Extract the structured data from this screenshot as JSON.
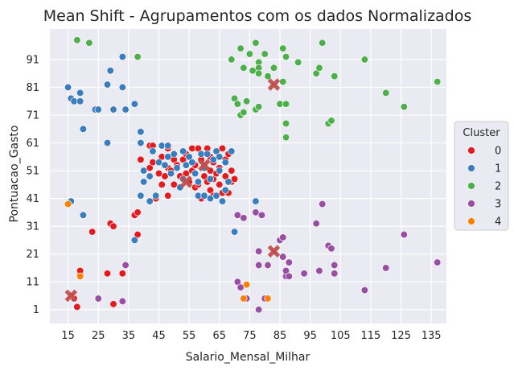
{
  "chart_data": {
    "type": "scatter",
    "title": "Mean Shift - Agrupamentos com os dados Normalizados",
    "xlabel": "Salario_Mensal_Milhar",
    "ylabel": "Pontuacao_Gasto",
    "xlim": [
      9,
      140
    ],
    "ylim": [
      -4,
      102
    ],
    "xticks": [
      15,
      25,
      35,
      45,
      55,
      65,
      75,
      85,
      95,
      105,
      115,
      125,
      135
    ],
    "yticks": [
      1,
      11,
      21,
      31,
      41,
      51,
      61,
      71,
      81,
      91
    ],
    "grid": true,
    "background": "#eaeaf2",
    "legend": {
      "title": "Cluster",
      "placement": "center-right"
    },
    "series": [
      {
        "name": "0",
        "color": "#e41a1c",
        "points": [
          [
            16,
            6
          ],
          [
            17,
            5
          ],
          [
            18,
            2
          ],
          [
            19,
            14
          ],
          [
            19,
            15
          ],
          [
            23,
            29
          ],
          [
            28,
            14
          ],
          [
            29,
            32
          ],
          [
            30,
            31
          ],
          [
            30,
            3
          ],
          [
            33,
            14
          ],
          [
            33,
            4
          ],
          [
            37,
            35
          ],
          [
            38,
            36
          ],
          [
            38,
            28
          ],
          [
            39,
            55
          ],
          [
            40,
            47
          ],
          [
            42,
            52
          ],
          [
            42,
            60
          ],
          [
            43,
            60
          ],
          [
            43,
            54
          ],
          [
            44,
            41
          ],
          [
            45,
            50
          ],
          [
            46,
            46
          ],
          [
            46,
            56
          ],
          [
            47,
            49
          ],
          [
            48,
            52
          ],
          [
            48,
            59
          ],
          [
            48,
            42
          ],
          [
            49,
            51
          ],
          [
            50,
            55
          ],
          [
            50,
            46
          ],
          [
            51,
            53
          ],
          [
            52,
            49
          ],
          [
            53,
            55
          ],
          [
            54,
            57
          ],
          [
            54,
            50
          ],
          [
            55,
            47
          ],
          [
            56,
            51
          ],
          [
            56,
            59
          ],
          [
            57,
            53
          ],
          [
            57,
            45
          ],
          [
            58,
            46
          ],
          [
            58,
            59
          ],
          [
            59,
            55
          ],
          [
            59,
            41
          ],
          [
            60,
            49
          ],
          [
            60,
            53
          ],
          [
            61,
            47
          ],
          [
            61,
            59
          ],
          [
            62,
            44
          ],
          [
            62,
            51
          ],
          [
            62,
            56
          ],
          [
            63,
            42
          ],
          [
            63,
            54
          ],
          [
            63,
            48
          ],
          [
            64,
            50
          ],
          [
            65,
            52
          ],
          [
            65,
            46
          ],
          [
            66,
            59
          ],
          [
            66,
            43
          ],
          [
            67,
            55
          ],
          [
            67,
            49
          ],
          [
            68,
            43
          ],
          [
            68,
            57
          ],
          [
            69,
            51
          ],
          [
            69,
            47
          ],
          [
            70,
            48
          ]
        ]
      },
      {
        "name": "1",
        "color": "#3a7dbf",
        "points": [
          [
            15,
            81
          ],
          [
            16,
            77
          ],
          [
            16,
            40
          ],
          [
            17,
            76
          ],
          [
            19,
            79
          ],
          [
            19,
            76
          ],
          [
            20,
            66
          ],
          [
            20,
            35
          ],
          [
            24,
            73
          ],
          [
            25,
            73
          ],
          [
            28,
            82
          ],
          [
            28,
            61
          ],
          [
            29,
            87
          ],
          [
            30,
            73
          ],
          [
            33,
            92
          ],
          [
            33,
            81
          ],
          [
            34,
            73
          ],
          [
            37,
            75
          ],
          [
            37,
            26
          ],
          [
            39,
            65
          ],
          [
            39,
            61
          ],
          [
            39,
            42
          ],
          [
            40,
            47
          ],
          [
            40,
            51
          ],
          [
            42,
            49
          ],
          [
            42,
            40
          ],
          [
            43,
            58
          ],
          [
            44,
            42
          ],
          [
            45,
            54
          ],
          [
            46,
            60
          ],
          [
            47,
            53
          ],
          [
            48,
            56
          ],
          [
            48,
            60
          ],
          [
            49,
            50
          ],
          [
            50,
            57
          ],
          [
            51,
            52
          ],
          [
            52,
            45
          ],
          [
            53,
            48
          ],
          [
            53,
            58
          ],
          [
            54,
            53
          ],
          [
            55,
            56
          ],
          [
            56,
            54
          ],
          [
            57,
            50
          ],
          [
            58,
            47
          ],
          [
            58,
            42
          ],
          [
            59,
            57
          ],
          [
            60,
            52
          ],
          [
            60,
            42
          ],
          [
            61,
            57
          ],
          [
            62,
            48
          ],
          [
            62,
            41
          ],
          [
            63,
            55
          ],
          [
            64,
            58
          ],
          [
            64,
            42
          ],
          [
            65,
            56
          ],
          [
            65,
            51
          ],
          [
            66,
            40
          ],
          [
            67,
            44
          ],
          [
            67,
            54
          ],
          [
            68,
            47
          ],
          [
            69,
            58
          ],
          [
            70,
            29
          ],
          [
            77,
            40
          ]
        ]
      },
      {
        "name": "2",
        "color": "#4daf4a",
        "points": [
          [
            18,
            98
          ],
          [
            22,
            97
          ],
          [
            38,
            92
          ],
          [
            69,
            91
          ],
          [
            70,
            77
          ],
          [
            71,
            75
          ],
          [
            72,
            71
          ],
          [
            72,
            95
          ],
          [
            73,
            72
          ],
          [
            73,
            88
          ],
          [
            74,
            76
          ],
          [
            75,
            93
          ],
          [
            76,
            87
          ],
          [
            77,
            73
          ],
          [
            77,
            97
          ],
          [
            78,
            90
          ],
          [
            78,
            88
          ],
          [
            78,
            86
          ],
          [
            78,
            74
          ],
          [
            80,
            93
          ],
          [
            81,
            85
          ],
          [
            83,
            88
          ],
          [
            85,
            75
          ],
          [
            86,
            95
          ],
          [
            86,
            83
          ],
          [
            87,
            92
          ],
          [
            87,
            75
          ],
          [
            87,
            63
          ],
          [
            87,
            68
          ],
          [
            91,
            90
          ],
          [
            97,
            86
          ],
          [
            98,
            88
          ],
          [
            99,
            97
          ],
          [
            101,
            68
          ],
          [
            102,
            69
          ],
          [
            103,
            85
          ],
          [
            113,
            91
          ],
          [
            120,
            79
          ],
          [
            126,
            74
          ],
          [
            137,
            83
          ]
        ]
      },
      {
        "name": "3",
        "color": "#984ea3",
        "points": [
          [
            25,
            5
          ],
          [
            33,
            4
          ],
          [
            34,
            17
          ],
          [
            71,
            35
          ],
          [
            71,
            11
          ],
          [
            72,
            9
          ],
          [
            73,
            34
          ],
          [
            74,
            5
          ],
          [
            77,
            36
          ],
          [
            78,
            1
          ],
          [
            78,
            22
          ],
          [
            78,
            17
          ],
          [
            79,
            35
          ],
          [
            80,
            5
          ],
          [
            81,
            17
          ],
          [
            85,
            26
          ],
          [
            86,
            27
          ],
          [
            86,
            20
          ],
          [
            87,
            13
          ],
          [
            87,
            15
          ],
          [
            88,
            13
          ],
          [
            88,
            18
          ],
          [
            93,
            14
          ],
          [
            97,
            32
          ],
          [
            98,
            15
          ],
          [
            99,
            39
          ],
          [
            101,
            24
          ],
          [
            102,
            23
          ],
          [
            103,
            17
          ],
          [
            103,
            14
          ],
          [
            113,
            8
          ],
          [
            120,
            16
          ],
          [
            126,
            28
          ],
          [
            137,
            18
          ]
        ]
      },
      {
        "name": "4",
        "color": "#ff7f00",
        "points": [
          [
            15,
            39
          ],
          [
            16,
            6
          ],
          [
            19,
            13
          ],
          [
            73,
            5
          ],
          [
            74,
            10
          ],
          [
            81,
            5
          ]
        ]
      }
    ],
    "centroids": {
      "color": "#c0504d",
      "points": [
        [
          16,
          6
        ],
        [
          54,
          47
        ],
        [
          60,
          53
        ],
        [
          83,
          22
        ],
        [
          83,
          82
        ]
      ]
    }
  }
}
